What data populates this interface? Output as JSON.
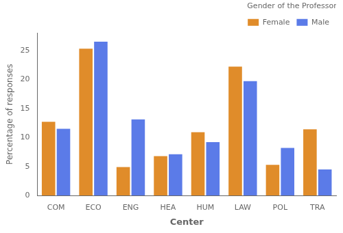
{
  "chart_data": {
    "type": "bar",
    "categories": [
      "COM",
      "ECO",
      "ENG",
      "HEA",
      "HUM",
      "LAW",
      "POL",
      "TRA"
    ],
    "series": [
      {
        "name": "Female",
        "color": "#E08C2A",
        "values": [
          12.7,
          25.3,
          4.9,
          6.8,
          10.9,
          22.2,
          5.3,
          11.4
        ]
      },
      {
        "name": "Male",
        "color": "#5B7BE8",
        "values": [
          11.5,
          26.5,
          13.1,
          7.1,
          9.2,
          19.7,
          8.2,
          4.5
        ]
      }
    ],
    "xlabel": "Center",
    "ylabel": "Percentage of responses",
    "ylim": [
      0,
      28
    ],
    "yticks": [
      0,
      5,
      10,
      15,
      20,
      25
    ],
    "legend": "upper right",
    "legend_title": "Gender of the Professor",
    "grid": false
  }
}
